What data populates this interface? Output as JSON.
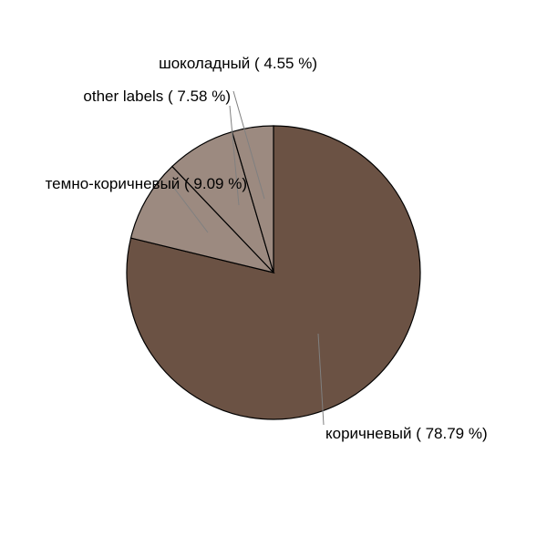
{
  "chart_data": {
    "type": "pie",
    "title": "",
    "slices": [
      {
        "label": "коричневый",
        "value": 78.79,
        "display": "коричневый ( 78.79 %)",
        "color": "#6b5244"
      },
      {
        "label": "темно-коричневый",
        "value": 9.09,
        "display": "темно-коричневый ( 9.09 %)",
        "color": "#9c8a80"
      },
      {
        "label": "other labels",
        "value": 7.58,
        "display": "other labels ( 7.58 %)",
        "color": "#9c8a80"
      },
      {
        "label": "шоколадный",
        "value": 4.55,
        "display": "шоколадный ( 4.55 %)",
        "color": "#9c8a80"
      }
    ],
    "start_angle": "12 o'clock",
    "direction": "clockwise",
    "slice_outline_color": "#000000",
    "leader_line_color": "#808080"
  }
}
